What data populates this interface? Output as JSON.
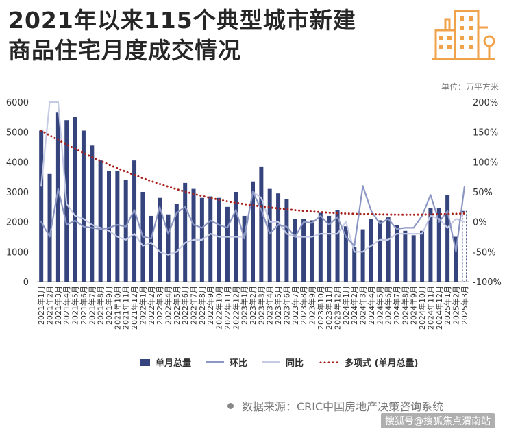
{
  "title": [
    "2021年以来115个典型城市新建",
    "商品住宅月度成交情况"
  ],
  "unit_label": "单位：万平方米",
  "source_text": "数据来源：CRIC中国房地产决策咨询系统",
  "watermark_text": "搜狐号@搜狐焦点渭南站",
  "colors": {
    "bar": "#36447e",
    "bar_last": "#ffffff",
    "hb": "#8b96c2",
    "tb": "#c5cbe4",
    "trend": "#a8221c",
    "grid": "#e3e3e3",
    "title": "#262626",
    "logo": "#f0a24a"
  },
  "legend": [
    {
      "label": "单月总量",
      "key": "bar"
    },
    {
      "label": "环比",
      "key": "hb"
    },
    {
      "label": "同比",
      "key": "tb"
    },
    {
      "label": "多项式 (单月总量)",
      "key": "trend"
    }
  ],
  "chart_data": {
    "type": "bar",
    "categories": [
      "2021年1月",
      "2021年2月",
      "2021年3月",
      "2021年4月",
      "2021年5月",
      "2021年6月",
      "2021年7月",
      "2021年8月",
      "2021年9月",
      "2021年10月",
      "2021年11月",
      "2021年12月",
      "2022年1月",
      "2022年2月",
      "2022年3月",
      "2022年4月",
      "2022年5月",
      "2022年6月",
      "2022年7月",
      "2022年8月",
      "2022年9月",
      "2022年10月",
      "2022年11月",
      "2022年12月",
      "2023年1月",
      "2023年2月",
      "2023年3月",
      "2023年4月",
      "2023年5月",
      "2023年6月",
      "2023年7月",
      "2023年8月",
      "2023年9月",
      "2023年10月",
      "2023年11月",
      "2023年12月",
      "2024年1月",
      "2024年2月",
      "2024年3月",
      "2024年4月",
      "2024年5月",
      "2024年6月",
      "2024年7月",
      "2024年8月",
      "2024年9月",
      "2024年10月",
      "2024年11月",
      "2024年12月",
      "2025年1月",
      "2025年2月",
      "2025年3月"
    ],
    "series": [
      {
        "name": "单月总量",
        "axis": "left",
        "render": "bar",
        "values": [
          5050,
          3600,
          5650,
          5400,
          5500,
          5050,
          4550,
          4050,
          3700,
          3700,
          3400,
          4050,
          3000,
          2200,
          2800,
          2250,
          2600,
          3300,
          3100,
          2800,
          2850,
          2800,
          2500,
          3000,
          2200,
          3350,
          3850,
          3100,
          2950,
          2750,
          2100,
          2100,
          2050,
          2300,
          2200,
          2400,
          1850,
          1150,
          1750,
          2100,
          2050,
          2150,
          1900,
          1700,
          1550,
          1700,
          2450,
          2450,
          2900,
          1500,
          2350
        ]
      },
      {
        "name": "环比",
        "axis": "right",
        "render": "line",
        "values": [
          0,
          -25,
          55,
          -5,
          2,
          -8,
          -10,
          -12,
          -10,
          -5,
          -8,
          20,
          -25,
          -28,
          25,
          -20,
          15,
          25,
          -5,
          -10,
          2,
          -5,
          -10,
          20,
          -28,
          50,
          20,
          -20,
          -5,
          -8,
          -25,
          0,
          -2,
          10,
          -5,
          8,
          -25,
          -40,
          60,
          18,
          -3,
          5,
          -12,
          -10,
          -10,
          10,
          45,
          0,
          18,
          -50,
          58
        ]
      },
      {
        "name": "同比",
        "axis": "right",
        "render": "line",
        "values": [
          60,
          200,
          200,
          30,
          10,
          5,
          -5,
          -10,
          -15,
          -25,
          -30,
          -20,
          -40,
          -35,
          -50,
          -55,
          -50,
          -35,
          -30,
          -30,
          -20,
          -25,
          -25,
          -25,
          -25,
          50,
          40,
          0,
          0,
          -20,
          -25,
          -25,
          -25,
          -20,
          -20,
          -20,
          0,
          -50,
          -50,
          -40,
          -30,
          -30,
          -20,
          -20,
          -20,
          -20,
          10,
          5,
          -10,
          5,
          0
        ]
      },
      {
        "name": "多项式 (单月总量)",
        "axis": "left",
        "render": "trend",
        "values": [
          5050,
          4890,
          4735,
          4585,
          4440,
          4300,
          4165,
          4035,
          3910,
          3790,
          3675,
          3565,
          3460,
          3360,
          3265,
          3175,
          3090,
          3010,
          2935,
          2865,
          2800,
          2740,
          2685,
          2635,
          2590,
          2550,
          2515,
          2480,
          2450,
          2420,
          2390,
          2365,
          2345,
          2325,
          2305,
          2290,
          2278,
          2268,
          2260,
          2255,
          2250,
          2245,
          2240,
          2238,
          2240,
          2243,
          2248,
          2255,
          2262,
          2270,
          2280
        ]
      }
    ],
    "y_left": {
      "min": 0,
      "max": 6000,
      "ticks": [
        0,
        1000,
        2000,
        3000,
        4000,
        5000,
        6000
      ]
    },
    "y_right": {
      "min": -100,
      "max": 200,
      "ticks": [
        -100,
        -50,
        0,
        50,
        100,
        150,
        200
      ],
      "tick_labels": [
        "-100%",
        "-50%",
        "0%",
        "50%",
        "100%",
        "150%",
        "200%"
      ]
    },
    "last_bar_dashed": true,
    "grid": false,
    "legend_position": "bottom"
  }
}
